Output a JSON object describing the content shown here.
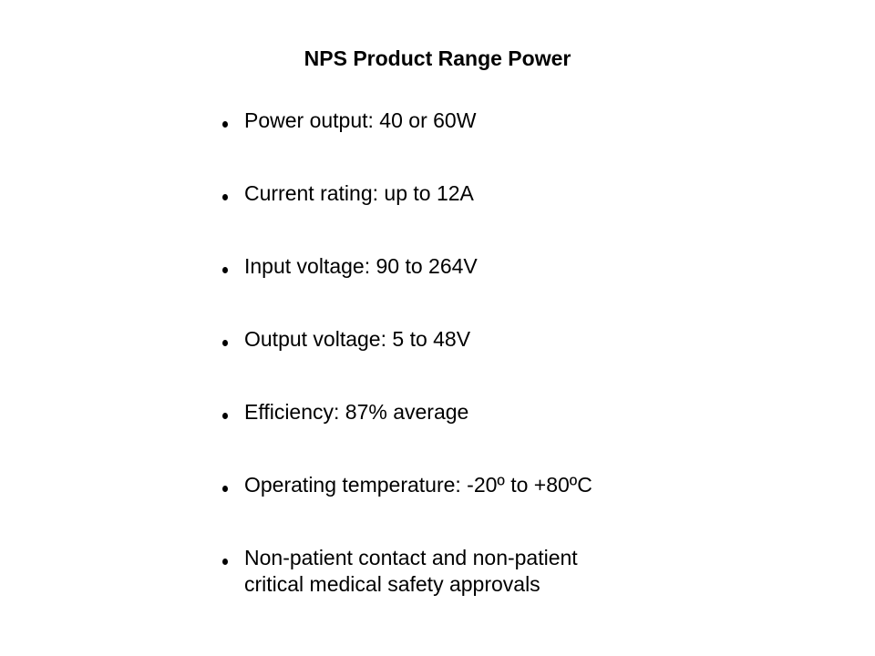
{
  "slide": {
    "title": "NPS Product Range Power",
    "bullets": [
      "Power output: 40 or 60W",
      "Current rating: up to 12A",
      "Input voltage: 90 to 264V",
      "Output voltage: 5 to 48V",
      "Efficiency: 87% average",
      "Operating temperature: -20º to +80ºC",
      "Non-patient contact and non-patient\ncritical medical safety approvals"
    ]
  }
}
